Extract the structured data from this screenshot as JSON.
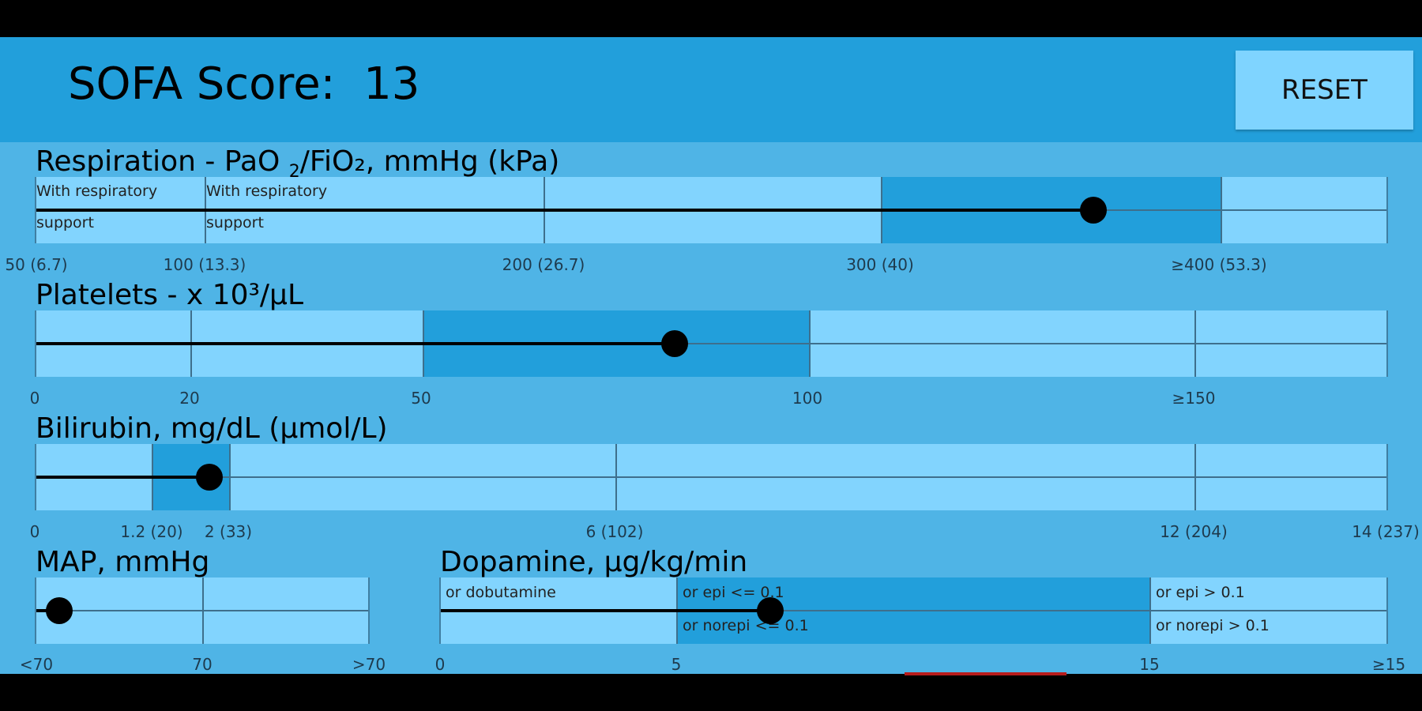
{
  "header": {
    "title": "SOFA Score:  13",
    "reset_label": "RESET"
  },
  "respiration": {
    "label_main": "Respiration - PaO",
    "label_sub": "2",
    "label_rest": "/FiO₂, mmHg (kPa)",
    "notes": [
      "With respiratory",
      "support",
      "With respiratory",
      "support"
    ],
    "ticks": [
      "50 (6.7)",
      "100 (13.3)",
      "200 (26.7)",
      "300 (40)",
      "≥400 (53.3)"
    ],
    "value_fraction": 0.783
  },
  "platelets": {
    "label": "Platelets - x 10³/µL",
    "ticks": [
      "0",
      "20",
      "50",
      "100",
      "≥150"
    ],
    "value_fraction": 0.473
  },
  "bilirubin": {
    "label": "Bilirubin, mg/dL (µmol/L)",
    "ticks": [
      "0",
      "1.2 (20)",
      "2 (33)",
      "6 (102)",
      "12 (204)",
      "14 (237)"
    ],
    "value_fraction": 0.128
  },
  "map": {
    "label": "MAP, mmHg",
    "ticks": [
      "<70",
      "70",
      ">70"
    ],
    "value_fraction": 0.07
  },
  "dopamine": {
    "label": "Dopamine, µg/kg/min",
    "notes": [
      "or dobutamine",
      "or epi <= 0.1",
      "or norepi <= 0.1",
      "or epi > 0.1",
      "or norepi > 0.1"
    ],
    "ticks": [
      "0",
      "5",
      "15",
      "≥15"
    ],
    "value_fraction": 0.348
  },
  "colors": {
    "background": "#4FB4E6",
    "header": "#229FDB",
    "track": "#82D4FE",
    "highlight": "#229FDB"
  }
}
